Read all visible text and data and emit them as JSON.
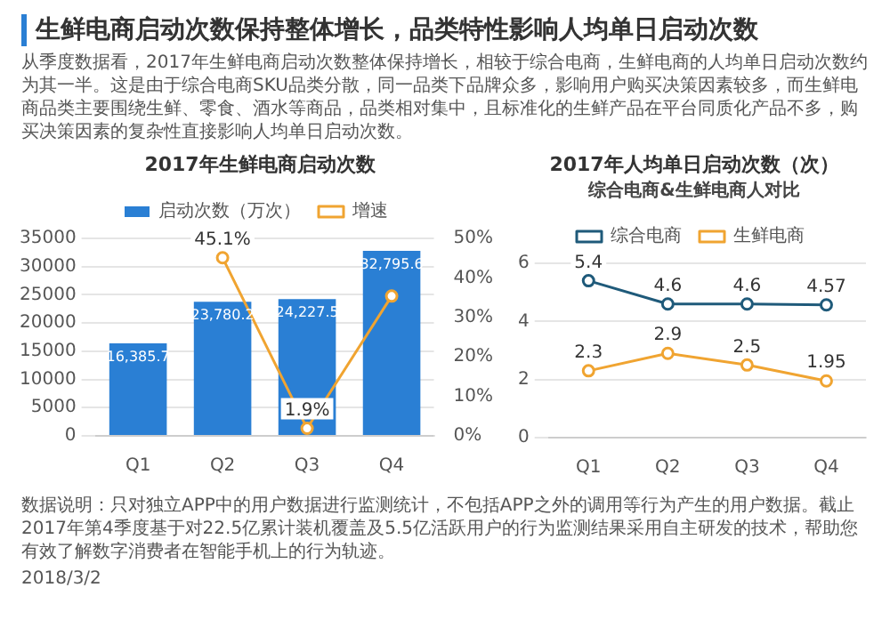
{
  "chart_data": [
    {
      "type": "other",
      "title": "生鲜电商启动次数保持整体增长，品类特性影响人均单日启动次数",
      "annotations": [
        "从季度数据看，2017年生鲜电商启动次数整体保持增长，相较于综合电商，生鲜电商的人均单日启动次数约为其一半。这是由于综合电商SKU品类分散，同一品类下品牌众多，影响用户购买决策因素较多，而生鲜电商品类主要围绕生鲜、零食、酒水等商品，品类相对集中，且标准化的生鲜产品在平台同质化产品不多，购买决策因素的复杂性直接影响人均单日启动次数。"
      ]
    },
    {
      "type": "bar",
      "title": "2017年生鲜电商启动次数",
      "categories": [
        "Q1",
        "Q2",
        "Q3",
        "Q4"
      ],
      "series": [
        {
          "name": "启动次数（万次）",
          "color": "#2a7fd4",
          "values": [
            16385.7,
            23780.2,
            24227.5,
            32795.6
          ],
          "value_labels": [
            "16,385.7",
            "23,780.2",
            "24,227.5",
            "32,795.6"
          ]
        },
        {
          "name": "增速",
          "type": "line",
          "axis": "y2",
          "color": "#f0a431",
          "values": [
            null,
            45.1,
            1.9,
            35.4
          ],
          "value_labels": [
            null,
            "45.1%",
            "1.9%",
            null
          ]
        }
      ],
      "ylim": [
        0,
        35000
      ],
      "yticks": [
        0,
        5000,
        10000,
        15000,
        20000,
        25000,
        30000,
        35000
      ],
      "y2lim": [
        0,
        50
      ],
      "y2ticks": [
        {
          "value": 0,
          "label": "0%"
        },
        {
          "value": 10,
          "label": "10%"
        },
        {
          "value": 20,
          "label": "20%"
        },
        {
          "value": 30,
          "label": "30%"
        },
        {
          "value": 40,
          "label": "40%"
        },
        {
          "value": 50,
          "label": "50%"
        }
      ],
      "grid": "y",
      "legend": "top",
      "marker": "circle"
    },
    {
      "type": "line",
      "title": "2017年人均单日启动次数（次）",
      "subtitle": "综合电商&生鲜电商人对比",
      "categories": [
        "Q1",
        "Q2",
        "Q3",
        "Q4"
      ],
      "series": [
        {
          "name": "综合电商",
          "color": "#1f5a7a",
          "values": [
            5.4,
            4.6,
            4.6,
            4.57
          ]
        },
        {
          "name": "生鲜电商",
          "color": "#f0a431",
          "values": [
            2.3,
            2.9,
            2.5,
            1.95
          ]
        }
      ],
      "ylim": [
        0,
        6
      ],
      "yticks": [
        0,
        2,
        4,
        6
      ],
      "grid": "y",
      "legend": "top",
      "marker": "circle",
      "data_labels": true
    },
    {
      "type": "other",
      "annotations": [
        "数据说明：只对独立APP中的用户数据进行监测统计，不包括APP之外的调用等行为产生的用户数据。截止2017年第4季度基于对22.5亿累计装机覆盖及5.5亿活跃用户的行为监测结果采用自主研发的技术，帮助您有效了解数字消费者在智能手机上的行为轨迹。",
        "2018/3/2"
      ]
    }
  ]
}
